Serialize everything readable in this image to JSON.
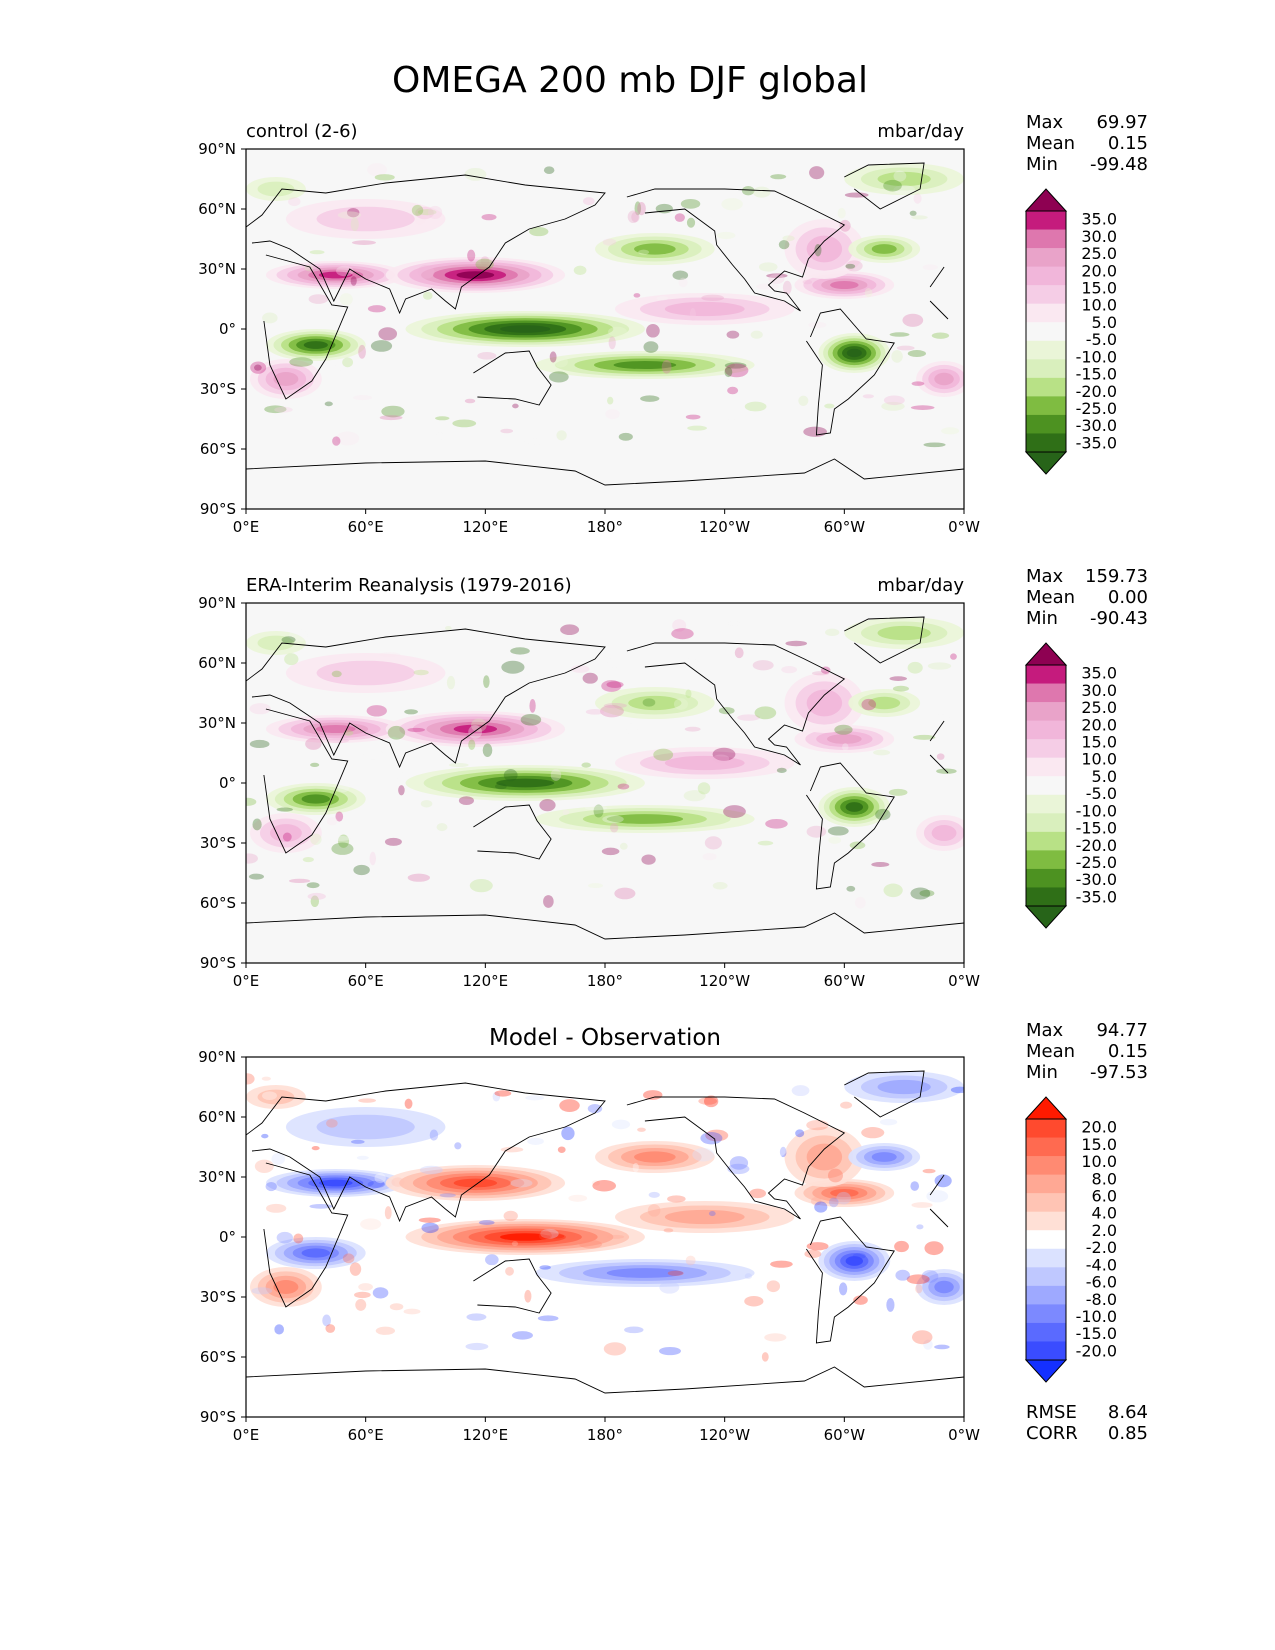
{
  "chart_data": {
    "type": "heatmap",
    "title": "OMEGA 200 mb DJF global",
    "x_ticks": [
      "0°E",
      "60°E",
      "120°E",
      "180°",
      "120°W",
      "60°W",
      "0°W"
    ],
    "y_ticks": [
      "90°N",
      "60°N",
      "30°N",
      "0°",
      "30°S",
      "60°S",
      "90°S"
    ],
    "xlim": [
      0,
      360
    ],
    "ylim": [
      -90,
      90
    ],
    "panels": [
      {
        "left_title": "control (2-6)",
        "center_title": "",
        "right_title": "mbar/day",
        "stats": [
          {
            "label": "Max",
            "value": "69.97"
          },
          {
            "label": "Mean",
            "value": "0.15"
          },
          {
            "label": "Min",
            "value": "-99.48"
          }
        ],
        "extra_stats": [],
        "colormap": "PiYG_r",
        "colorbar_labels": [
          "35.0",
          "30.0",
          "25.0",
          "20.0",
          "15.0",
          "10.0",
          "5.0",
          "-5.0",
          "-10.0",
          "-15.0",
          "-20.0",
          "-25.0",
          "-30.0",
          "-35.0"
        ],
        "colorbar_colors": [
          "#8e0152",
          "#c51b7d",
          "#de77ae",
          "#e9a3c9",
          "#f1b6da",
          "#f5cde6",
          "#fae8f1",
          "#f7f7f7",
          "#eaf5d8",
          "#d9efbd",
          "#b8e186",
          "#7fbc41",
          "#4d9221",
          "#2f6f17",
          "#276419"
        ]
      },
      {
        "left_title": "ERA-Interim Reanalysis (1979-2016)",
        "center_title": "",
        "right_title": "mbar/day",
        "stats": [
          {
            "label": "Max",
            "value": "159.73"
          },
          {
            "label": "Mean",
            "value": "0.00"
          },
          {
            "label": "Min",
            "value": "-90.43"
          }
        ],
        "extra_stats": [],
        "colormap": "PiYG_r",
        "colorbar_labels": [
          "35.0",
          "30.0",
          "25.0",
          "20.0",
          "15.0",
          "10.0",
          "5.0",
          "-5.0",
          "-10.0",
          "-15.0",
          "-20.0",
          "-25.0",
          "-30.0",
          "-35.0"
        ],
        "colorbar_colors": [
          "#8e0152",
          "#c51b7d",
          "#de77ae",
          "#e9a3c9",
          "#f1b6da",
          "#f5cde6",
          "#fae8f1",
          "#f7f7f7",
          "#eaf5d8",
          "#d9efbd",
          "#b8e186",
          "#7fbc41",
          "#4d9221",
          "#2f6f17",
          "#276419"
        ]
      },
      {
        "left_title": "",
        "center_title": "Model - Observation",
        "right_title": "",
        "stats": [
          {
            "label": "Max",
            "value": "94.77"
          },
          {
            "label": "Mean",
            "value": "0.15"
          },
          {
            "label": "Min",
            "value": "-97.53"
          }
        ],
        "extra_stats": [
          {
            "label": "RMSE",
            "value": "8.64"
          },
          {
            "label": "CORR",
            "value": "0.85"
          }
        ],
        "colormap": "bwr",
        "colorbar_labels": [
          "20.0",
          "15.0",
          "10.0",
          "8.0",
          "6.0",
          "4.0",
          "2.0",
          "-2.0",
          "-4.0",
          "-6.0",
          "-8.0",
          "-10.0",
          "-15.0",
          "-20.0"
        ],
        "colorbar_colors": [
          "#ff1a00",
          "#ff4a2e",
          "#ff6a50",
          "#ff8a72",
          "#ffa894",
          "#ffc4b4",
          "#ffe0d6",
          "#ffffff",
          "#dbe2ff",
          "#bfc8ff",
          "#9ea9ff",
          "#7c89ff",
          "#5a6aff",
          "#3a4cff",
          "#1430ff"
        ]
      }
    ]
  }
}
